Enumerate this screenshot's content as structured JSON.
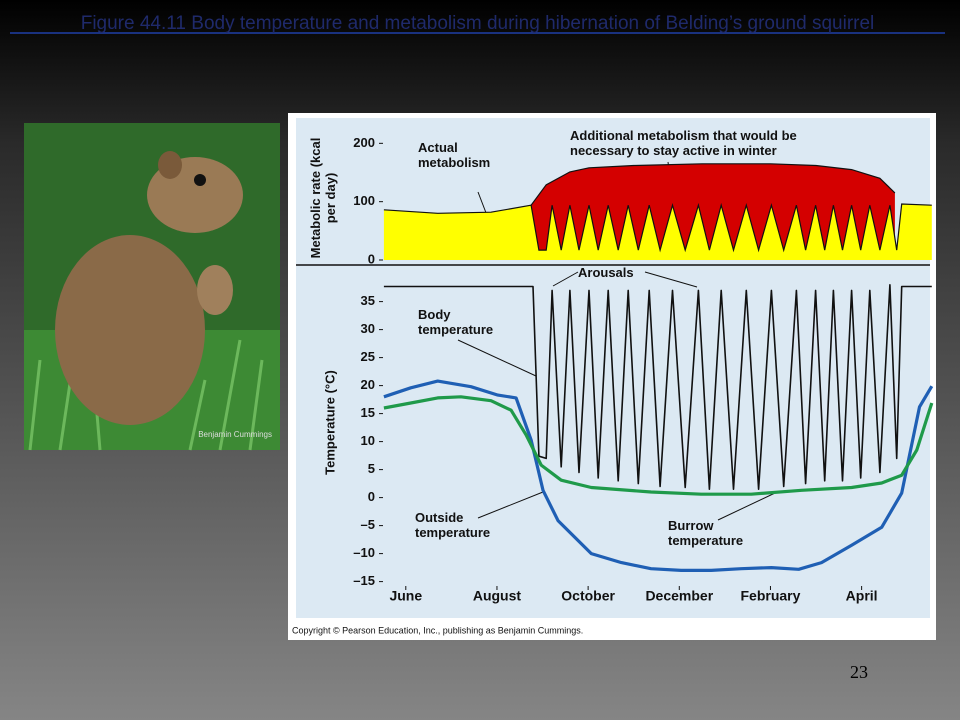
{
  "title": "Figure 44.11  Body temperature and metabolism during hibernation of Belding’s ground squirrel",
  "slide_number": 23,
  "photo_credit": "Benjamin Cummings",
  "copyright": "Copyright © Pearson Education, Inc., publishing as Benjamin Cummings.",
  "chart_data": [
    {
      "type": "area",
      "ylabel": "Metabolic rate (kcal per day)",
      "xlim": [
        -0.5,
        11.5
      ],
      "ylim": [
        0,
        240
      ],
      "yticks": [
        0,
        100,
        200
      ],
      "series": [
        {
          "name": "Additional metabolism that would be necessary to stay active in winter",
          "color": "#d40000",
          "x": [
            2.75,
            3.08,
            3.6,
            4.02,
            5.0,
            6.5,
            8.0,
            9.0,
            9.78,
            10.4,
            10.73
          ],
          "values": [
            94,
            129,
            151,
            158,
            162,
            165,
            165,
            162,
            155,
            140,
            115
          ]
        },
        {
          "name": "Actual metabolism",
          "color": "#ffff00",
          "x": [
            -0.48,
            0.7,
            1.87,
            2.75,
            2.92,
            3.08,
            3.21,
            3.41,
            3.6,
            3.8,
            4.02,
            4.22,
            4.44,
            4.66,
            4.88,
            5.1,
            5.34,
            5.58,
            5.85,
            6.13,
            6.42,
            6.66,
            6.92,
            7.19,
            7.47,
            7.74,
            8.02,
            8.29,
            8.57,
            8.77,
            8.99,
            9.19,
            9.38,
            9.58,
            9.78,
            9.98,
            10.18,
            10.4,
            10.62,
            10.77,
            10.88,
            11.54
          ],
          "values": [
            86,
            80,
            82,
            94,
            17,
            17,
            94,
            17,
            94,
            17,
            94,
            17,
            94,
            17,
            94,
            17,
            94,
            17,
            94,
            17,
            94,
            17,
            94,
            17,
            94,
            17,
            94,
            17,
            94,
            17,
            94,
            17,
            94,
            17,
            94,
            17,
            94,
            17,
            94,
            17,
            96,
            94
          ]
        }
      ]
    },
    {
      "type": "line",
      "ylabel": "Temperature (°C)",
      "annotation": "Arousals",
      "xlim": [
        -0.5,
        11.5
      ],
      "ylim": [
        -16.5,
        41
      ],
      "xticks": [
        {
          "value": 0,
          "label": "June"
        },
        {
          "value": 2,
          "label": "August"
        },
        {
          "value": 4,
          "label": "October"
        },
        {
          "value": 6,
          "label": "December"
        },
        {
          "value": 8,
          "label": "February"
        },
        {
          "value": 10,
          "label": "April"
        }
      ],
      "yticks": [
        {
          "value": -15,
          "label": "–15"
        },
        {
          "value": -10,
          "label": "–10"
        },
        {
          "value": -5,
          "label": "–5"
        },
        0,
        5,
        10,
        15,
        20,
        25,
        30,
        35
      ],
      "series": [
        {
          "name": "Body temperature",
          "color": "#111111",
          "x": [
            -0.48,
            2.79,
            2.92,
            3.08,
            3.21,
            3.41,
            3.6,
            3.8,
            4.02,
            4.22,
            4.44,
            4.66,
            4.88,
            5.1,
            5.34,
            5.58,
            5.85,
            6.13,
            6.42,
            6.66,
            6.92,
            7.19,
            7.47,
            7.74,
            8.02,
            8.29,
            8.57,
            8.77,
            8.99,
            9.19,
            9.38,
            9.58,
            9.78,
            9.98,
            10.18,
            10.4,
            10.62,
            10.77,
            10.88,
            11.54
          ],
          "values": [
            37.7,
            37.7,
            7.4,
            7.0,
            37,
            5.5,
            37,
            4.5,
            37,
            3.5,
            37,
            3,
            37,
            2.5,
            37,
            2,
            37,
            1.8,
            37,
            1.5,
            37,
            1.5,
            37,
            1.5,
            37,
            2,
            37,
            2.5,
            37,
            3,
            37,
            3,
            37,
            3.5,
            37,
            4.5,
            38,
            7,
            37.7,
            37.7
          ]
        },
        {
          "name": "Outside temperature",
          "color": "#1f5fb4",
          "x": [
            -0.48,
            0.11,
            0.7,
            1.43,
            2.02,
            2.42,
            2.75,
            3.01,
            3.34,
            4.07,
            4.73,
            5.38,
            6.04,
            6.7,
            7.36,
            8.02,
            8.62,
            9.12,
            9.78,
            10.44,
            10.88,
            11.27,
            11.54
          ],
          "values": [
            18.0,
            19.6,
            20.8,
            19.8,
            18.3,
            17.8,
            10.3,
            1.3,
            -4.1,
            -10.0,
            -11.6,
            -12.7,
            -13.0,
            -13.0,
            -12.7,
            -12.5,
            -12.8,
            -11.6,
            -8.5,
            -5.3,
            0.8,
            16.2,
            19.9
          ]
        },
        {
          "name": "Burrow temperature",
          "color": "#1f9a4a",
          "x": [
            -0.48,
            0.11,
            0.7,
            1.21,
            1.87,
            2.31,
            2.64,
            2.97,
            3.41,
            4.07,
            5.38,
            6.48,
            7.58,
            8.68,
            9.78,
            10.44,
            10.88,
            11.21,
            11.54
          ],
          "values": [
            16.0,
            16.9,
            17.8,
            18.0,
            17.3,
            15.6,
            11.2,
            5.8,
            3.1,
            1.8,
            1.0,
            0.6,
            0.6,
            1.3,
            1.8,
            2.6,
            4.0,
            8.5,
            16.9
          ]
        }
      ]
    }
  ]
}
